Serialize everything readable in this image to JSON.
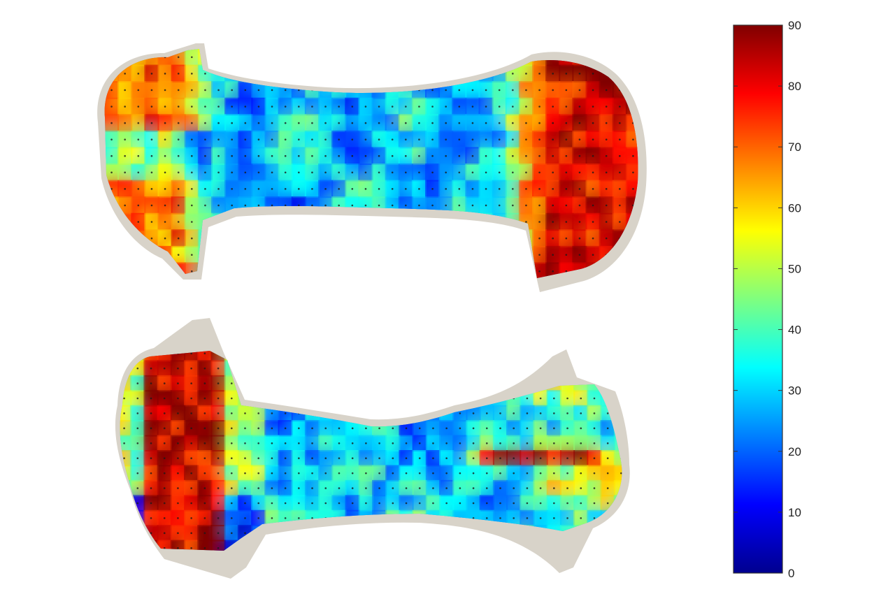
{
  "chart_data": {
    "type": "heatmap",
    "title": "",
    "xlabel": "",
    "ylabel": "",
    "colormap": "jet",
    "colorbar": {
      "min": 0,
      "max": 90,
      "ticks": [
        "0",
        "10",
        "20",
        "30",
        "40",
        "50",
        "60",
        "70",
        "80",
        "90"
      ]
    },
    "maps": [
      {
        "name": "upper-specimen",
        "grid_cols": 40,
        "grid_rows": 14,
        "regions": [
          {
            "area": "left-end",
            "value": 72
          },
          {
            "area": "gauge-section",
            "value": 28
          },
          {
            "area": "right-end",
            "value": 82
          }
        ]
      },
      {
        "name": "lower-specimen",
        "grid_cols": 38,
        "grid_rows": 14,
        "regions": [
          {
            "area": "left-end",
            "value": 84
          },
          {
            "area": "gauge-section",
            "value": 30
          },
          {
            "area": "right-end",
            "value": 44
          },
          {
            "area": "right-end-streak",
            "value": 82
          }
        ]
      }
    ]
  }
}
